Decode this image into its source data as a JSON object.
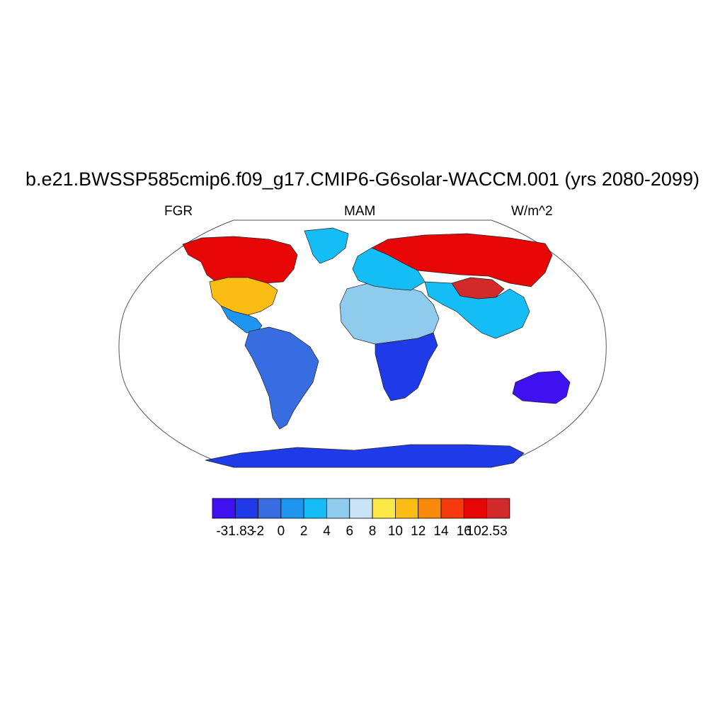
{
  "title": "b.e21.BWSSP585cmip6.f09_g17.CMIP6-G6solar-WACCM.001 (yrs 2080-2099)",
  "left_string": "FGR",
  "center_string": "MAM",
  "right_string": "W/m^2",
  "projection": "Robinson",
  "colorbar": {
    "labels": [
      "-31.83",
      "-2",
      "0",
      "2",
      "4",
      "6",
      "8",
      "10",
      "12",
      "14",
      "16",
      "102.53"
    ],
    "colors": [
      "#3f10f0",
      "#1f3ae8",
      "#376de0",
      "#1e96f0",
      "#14bdf5",
      "#8fcbec",
      "#c8e4f5",
      "#fde84a",
      "#fbbc14",
      "#f98a0c",
      "#f73a0c",
      "#e60606",
      "#d22a2a"
    ]
  },
  "regions": [
    {
      "name": "Canada / Alaska",
      "color": "#e60606"
    },
    {
      "name": "Eastern United States",
      "color": "#fbbc14"
    },
    {
      "name": "Greenland",
      "color": "#14bdf5"
    },
    {
      "name": "Central America",
      "color": "#1e96f0"
    },
    {
      "name": "South America",
      "color": "#376de0"
    },
    {
      "name": "Northern Africa",
      "color": "#8fcbec"
    },
    {
      "name": "Southern Africa",
      "color": "#1f3ae8"
    },
    {
      "name": "Europe",
      "color": "#14bdf5"
    },
    {
      "name": "Siberia / Russia",
      "color": "#e60606"
    },
    {
      "name": "Tibetan Plateau",
      "color": "#d22a2a"
    },
    {
      "name": "South Asia",
      "color": "#14bdf5"
    },
    {
      "name": "Australia",
      "color": "#3f10f0"
    },
    {
      "name": "Antarctica",
      "color": "#1f3ae8"
    }
  ]
}
